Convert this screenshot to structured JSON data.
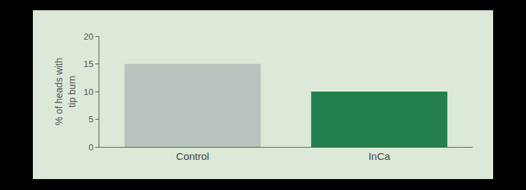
{
  "chart_data": {
    "type": "bar",
    "y_label": "% of heads with tip burn",
    "categories": [
      "Control",
      "InCa"
    ],
    "values": [
      15,
      10
    ],
    "colors": [
      "#b8c4bd",
      "#23804d"
    ],
    "ylim": [
      0,
      20
    ],
    "yticks": [
      0,
      5,
      10,
      15,
      20
    ],
    "grid": false
  }
}
